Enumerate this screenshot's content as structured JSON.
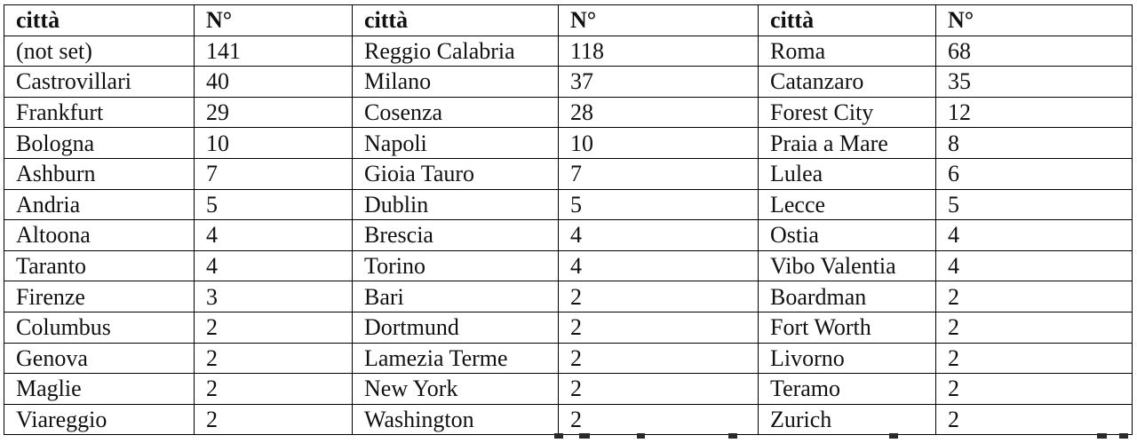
{
  "table": {
    "header": [
      "città",
      "N°",
      "città",
      "N°",
      "città",
      "N°"
    ],
    "rows": [
      [
        "(not set)",
        "141",
        "Reggio Calabria",
        "118",
        "Roma",
        "68"
      ],
      [
        "Castrovillari",
        "40",
        "Milano",
        "37",
        "Catanzaro",
        "35"
      ],
      [
        "Frankfurt",
        "29",
        "Cosenza",
        "28",
        "Forest City",
        "12"
      ],
      [
        "Bologna",
        "10",
        "Napoli",
        "10",
        "Praia a Mare",
        "8"
      ],
      [
        "Ashburn",
        "7",
        "Gioia Tauro",
        "7",
        "Lulea",
        "6"
      ],
      [
        "Andria",
        "5",
        "Dublin",
        "5",
        "Lecce",
        "5"
      ],
      [
        "Altoona",
        "4",
        "Brescia",
        "4",
        "Ostia",
        "4"
      ],
      [
        "Taranto",
        "4",
        "Torino",
        "4",
        "Vibo Valentia",
        "4"
      ],
      [
        "Firenze",
        "3",
        "Bari",
        "2",
        "Boardman",
        "2"
      ],
      [
        "Columbus",
        "2",
        "Dortmund",
        "2",
        "Fort Worth",
        "2"
      ],
      [
        "Genova",
        "2",
        "Lamezia Terme",
        "2",
        "Livorno",
        "2"
      ],
      [
        "Maglie",
        "2",
        "New York",
        "2",
        "Teramo",
        "2"
      ],
      [
        "Viareggio",
        "2",
        "Washington",
        "2",
        "Zurich",
        "2"
      ]
    ]
  }
}
